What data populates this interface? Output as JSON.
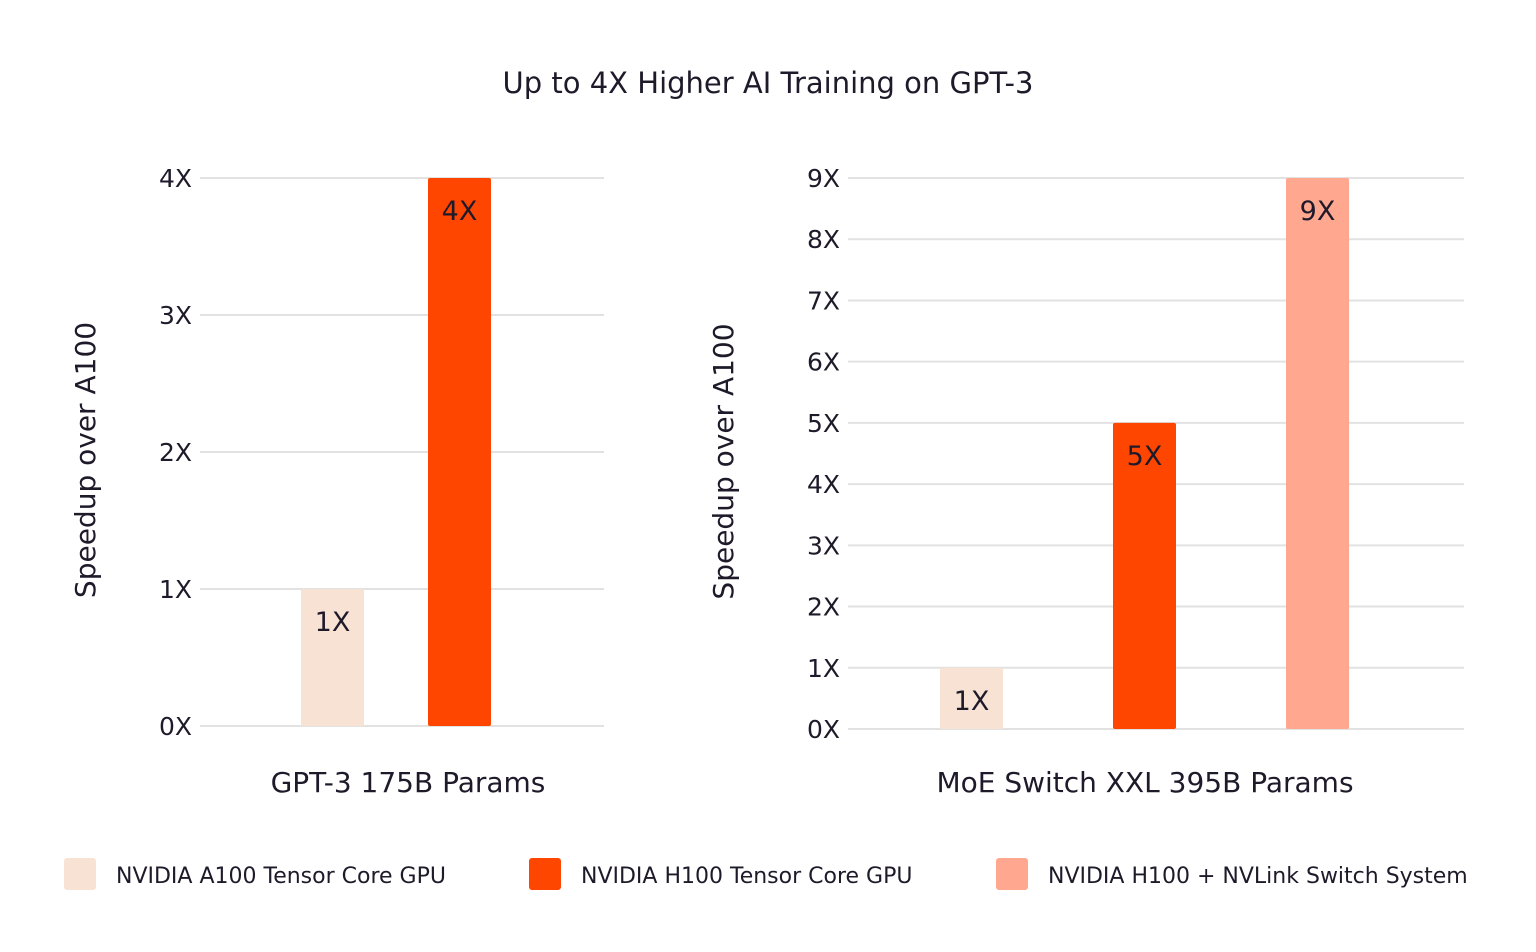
{
  "title": "Up to 4X Higher AI Training on GPT-3",
  "colors": {
    "text": "#1f1a2a",
    "grid": "#e2e2e2",
    "A100": "#F8E2D4",
    "H100": "#FF4600",
    "H100_NVLink": "#FFA78F"
  },
  "legend": [
    {
      "label": "NVIDIA A100 Tensor Core GPU",
      "color": "#F8E2D4"
    },
    {
      "label": "NVIDIA  H100 Tensor Core GPU",
      "color": "#FF4600"
    },
    {
      "label": "NVIDIA  H100 + NVLink Switch System",
      "color": "#FFA78F"
    }
  ],
  "chart_data": [
    {
      "type": "bar",
      "xlabel": "GPT-3 175B Params",
      "ylabel": "Speedup over A100",
      "ylim": [
        0,
        4
      ],
      "yticks": [
        "0X",
        "1X",
        "2X",
        "3X",
        "4X"
      ],
      "grid": true,
      "legend_position": "bottom",
      "bars": [
        {
          "series": "NVIDIA A100 Tensor Core GPU",
          "value": 1,
          "label": "1X",
          "color": "#F8E2D4"
        },
        {
          "series": "NVIDIA H100 Tensor Core GPU",
          "value": 4,
          "label": "4X",
          "color": "#FF4600"
        }
      ]
    },
    {
      "type": "bar",
      "xlabel": "MoE Switch XXL 395B Params",
      "ylabel": "Speedup over A100",
      "ylim": [
        0,
        9
      ],
      "yticks": [
        "0X",
        "1X",
        "2X",
        "3X",
        "4X",
        "5X",
        "6X",
        "7X",
        "8X",
        "9X"
      ],
      "grid": true,
      "legend_position": "bottom",
      "bars": [
        {
          "series": "NVIDIA A100 Tensor Core GPU",
          "value": 1,
          "label": "1X",
          "color": "#F8E2D4"
        },
        {
          "series": "NVIDIA H100 Tensor Core GPU",
          "value": 5,
          "label": "5X",
          "color": "#FF4600"
        },
        {
          "series": "NVIDIA H100 + NVLink Switch System",
          "value": 9,
          "label": "9X",
          "color": "#FFA78F"
        }
      ]
    }
  ]
}
